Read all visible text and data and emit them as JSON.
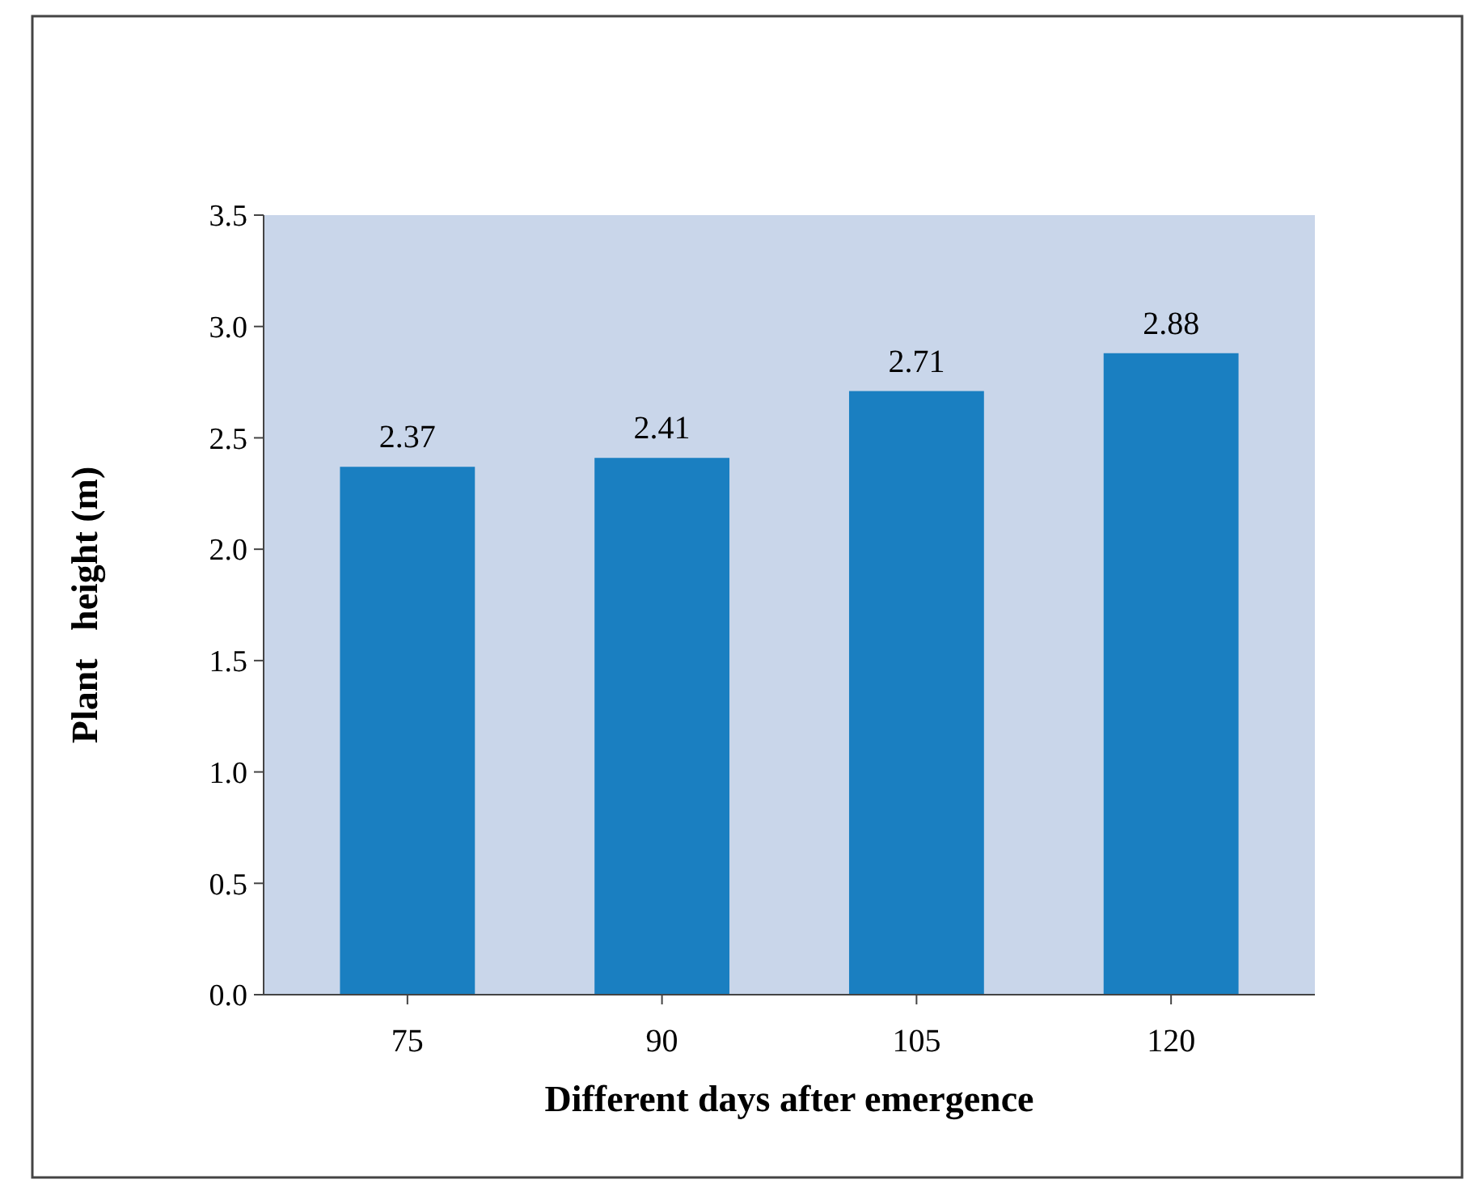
{
  "chart_data": {
    "type": "bar",
    "xlabel": "Different days after emergence",
    "ylabel": "Plant   height (m)",
    "categories": [
      "75",
      "90",
      "105",
      "120"
    ],
    "values": [
      2.37,
      2.41,
      2.71,
      2.88
    ],
    "color": "#1a7fc1",
    "ylim": [
      0,
      3.5
    ],
    "yticks": [
      {
        "value": 0,
        "label": "0.0"
      },
      0.5,
      {
        "value": 1,
        "label": "1.0"
      },
      1.5,
      {
        "value": 2,
        "label": "2.0"
      },
      2.5,
      {
        "value": 3,
        "label": "3.0"
      },
      3.5
    ],
    "data_labels": true
  }
}
